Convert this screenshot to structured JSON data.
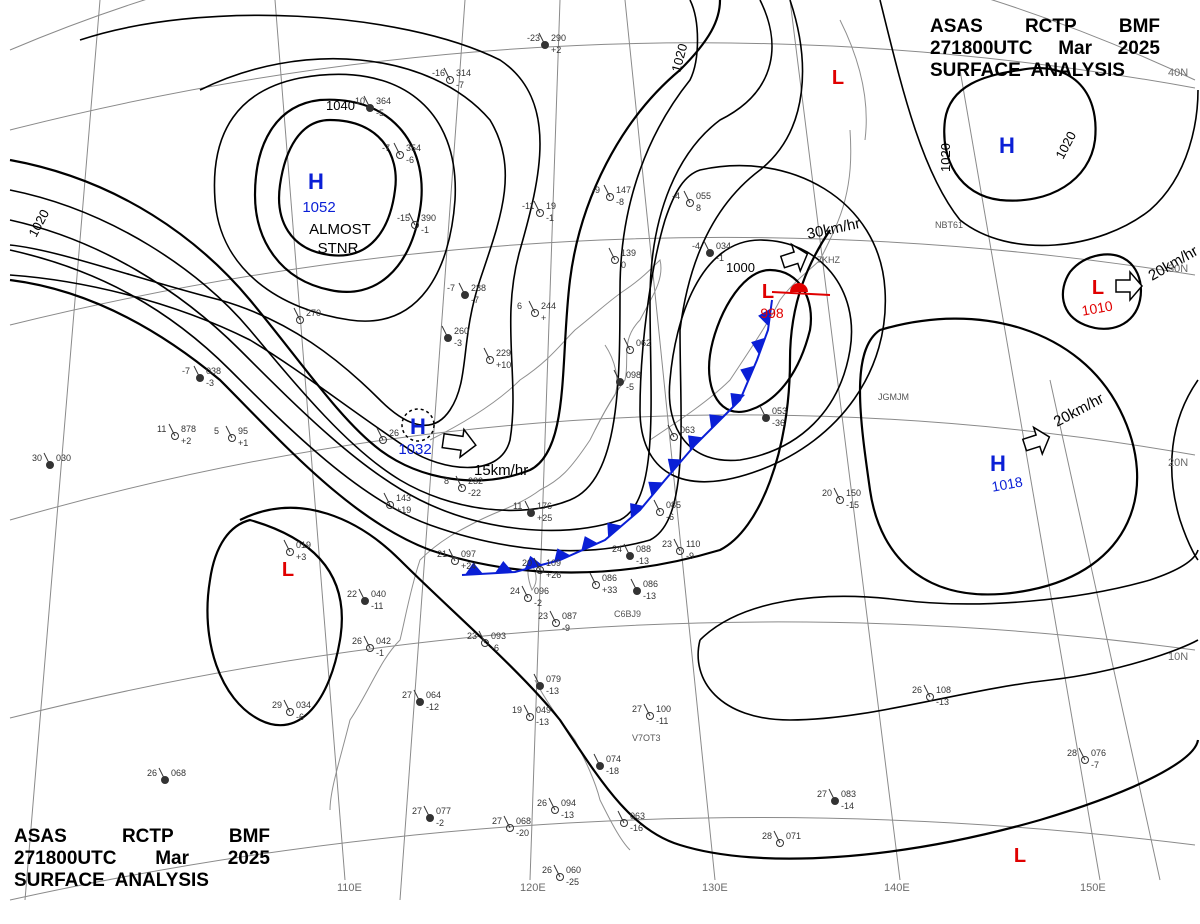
{
  "header": {
    "line1": [
      "ASAS",
      "RCTP",
      "BMF"
    ],
    "line2": [
      "271800UTC",
      "Mar",
      "2025"
    ],
    "line3": "SURFACE  ANALYSIS"
  },
  "latitude_labels": [
    "40N",
    "30N",
    "20N",
    "10N"
  ],
  "longitude_labels": [
    "110E",
    "120E",
    "130E",
    "140E",
    "150E"
  ],
  "isobar_labels": [
    "1040",
    "1020",
    "1020",
    "1020",
    "1020",
    "1000"
  ],
  "centers": [
    {
      "id": "high-mongolia",
      "kind": "H",
      "pressure": "1052",
      "note": [
        "ALMOST",
        "STNR"
      ]
    },
    {
      "id": "high-south-china",
      "kind": "H",
      "pressure": "1032",
      "motion": "15km/hr"
    },
    {
      "id": "low-japan",
      "kind": "L",
      "pressure": "998",
      "motion": "30km/hr"
    },
    {
      "id": "high-north-pacific",
      "kind": "H",
      "pressure": ""
    },
    {
      "id": "low-east",
      "kind": "L",
      "pressure": "1010",
      "motion": "20km/hr"
    },
    {
      "id": "high-west-pacific",
      "kind": "H",
      "pressure": "1018",
      "motion": "20km/hr"
    },
    {
      "id": "low-sakhalin",
      "kind": "L",
      "pressure": ""
    },
    {
      "id": "low-indochina",
      "kind": "L",
      "pressure": ""
    },
    {
      "id": "low-southeast",
      "kind": "L",
      "pressure": ""
    }
  ],
  "colors": {
    "high": "#0a1fd6",
    "low": "#e00000",
    "front": "#0a1fd6",
    "isobar": "#000000",
    "grid": "#8a8a8a"
  },
  "station_plots": [
    {
      "t": "-10",
      "p": "364",
      "d": "-5"
    },
    {
      "t": "-7",
      "p": "354",
      "d": "-6"
    },
    {
      "t": "-16",
      "p": "314",
      "d": "-7"
    },
    {
      "t": "-23",
      "p": "290",
      "d": "+2"
    },
    {
      "t": "-15",
      "p": "390",
      "d": "-1"
    },
    {
      "t": "-11",
      "p": "19",
      "d": "-1"
    },
    {
      "t": "-7",
      "p": "288",
      "d": "-7"
    },
    {
      "t": "-9",
      "p": "147",
      "d": "-8"
    },
    {
      "t": "-4",
      "p": "055",
      "d": "8"
    },
    {
      "t": "-4",
      "p": "034",
      "d": "-1"
    },
    {
      "t": "",
      "p": "139",
      "d": "0"
    },
    {
      "t": "6",
      "p": "244",
      "d": "+"
    },
    {
      "t": "-7",
      "p": "038",
      "d": "-3"
    },
    {
      "t": "11",
      "p": "878",
      "d": "+2"
    },
    {
      "t": "5",
      "p": "95",
      "d": "+1"
    },
    {
      "t": "30",
      "p": "030",
      "d": ""
    },
    {
      "t": "",
      "p": "143",
      "d": "+19"
    },
    {
      "t": "8",
      "p": "232",
      "d": "-22"
    },
    {
      "t": "11",
      "p": "176",
      "d": "+25"
    },
    {
      "t": "21",
      "p": "097",
      "d": "+24"
    },
    {
      "t": "20",
      "p": "109",
      "d": "+26"
    },
    {
      "t": "24",
      "p": "088",
      "d": "-13"
    },
    {
      "t": "23",
      "p": "110",
      "d": "-9"
    },
    {
      "t": "",
      "p": "086",
      "d": "+33"
    },
    {
      "t": "",
      "p": "086",
      "d": "-13"
    },
    {
      "t": "23",
      "p": "087",
      "d": "-9"
    },
    {
      "t": "24",
      "p": "096",
      "d": "-2"
    },
    {
      "t": "22",
      "p": "040",
      "d": "-11"
    },
    {
      "t": "26",
      "p": "042",
      "d": "-1"
    },
    {
      "t": "23",
      "p": "093",
      "d": "-6"
    },
    {
      "t": "27",
      "p": "064",
      "d": "-12"
    },
    {
      "t": "29",
      "p": "034",
      "d": "-6"
    },
    {
      "t": "",
      "p": "019",
      "d": "+3"
    },
    {
      "t": "",
      "p": "079",
      "d": "-13"
    },
    {
      "t": "19",
      "p": "049",
      "d": "-13"
    },
    {
      "t": "27",
      "p": "100",
      "d": "-11"
    },
    {
      "t": "",
      "p": "074",
      "d": "-18"
    },
    {
      "t": "26",
      "p": "094",
      "d": "-13"
    },
    {
      "t": "",
      "p": "063",
      "d": "-16"
    },
    {
      "t": "27",
      "p": "077",
      "d": "-2"
    },
    {
      "t": "27",
      "p": "068",
      "d": "-20"
    },
    {
      "t": "26",
      "p": "060",
      "d": "-25"
    },
    {
      "t": "26",
      "p": "068",
      "d": ""
    },
    {
      "t": "20",
      "p": "150",
      "d": "-15"
    },
    {
      "t": "26",
      "p": "108",
      "d": "-13"
    },
    {
      "t": "27",
      "p": "083",
      "d": "-14"
    },
    {
      "t": "28",
      "p": "071",
      "d": ""
    },
    {
      "t": "28",
      "p": "076",
      "d": "-7"
    },
    {
      "t": "",
      "p": "053",
      "d": "-36"
    },
    {
      "t": "",
      "p": "062",
      "d": ""
    },
    {
      "t": "",
      "p": "085",
      "d": "-6"
    },
    {
      "t": "",
      "p": "098",
      "d": "-5"
    },
    {
      "t": "",
      "p": "063",
      "d": ""
    },
    {
      "t": "",
      "p": "229",
      "d": "+10"
    },
    {
      "t": "",
      "p": "260",
      "d": "-3"
    },
    {
      "t": "",
      "p": "270",
      "d": ""
    },
    {
      "t": "",
      "p": "26",
      "d": ""
    }
  ],
  "ship_labels": [
    "7KHZ",
    "NBT61",
    "JGMJM",
    "V7OT3",
    "C6BJ9"
  ]
}
